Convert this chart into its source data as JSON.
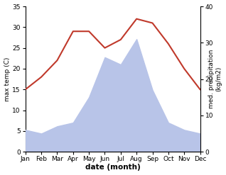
{
  "months": [
    "Jan",
    "Feb",
    "Mar",
    "Apr",
    "May",
    "Jun",
    "Jul",
    "Aug",
    "Sep",
    "Oct",
    "Nov",
    "Dec"
  ],
  "temperature": [
    15,
    18,
    22,
    29,
    29,
    25,
    27,
    32,
    31,
    26,
    20,
    15
  ],
  "precipitation": [
    6,
    5,
    7,
    8,
    15,
    26,
    24,
    31,
    17,
    8,
    6,
    5
  ],
  "temp_color": "#c0392b",
  "precip_fill_color": "#b8c4e8",
  "precip_edge_color": "#8090cc",
  "temp_ylim": [
    0,
    35
  ],
  "precip_ylim": [
    0,
    40
  ],
  "temp_yticks": [
    0,
    5,
    10,
    15,
    20,
    25,
    30,
    35
  ],
  "precip_yticks": [
    0,
    10,
    20,
    30,
    40
  ],
  "xlabel": "date (month)",
  "ylabel_left": "max temp (C)",
  "ylabel_right": "med. precipitation\n(kg/m2)",
  "bg_color": "#ffffff"
}
